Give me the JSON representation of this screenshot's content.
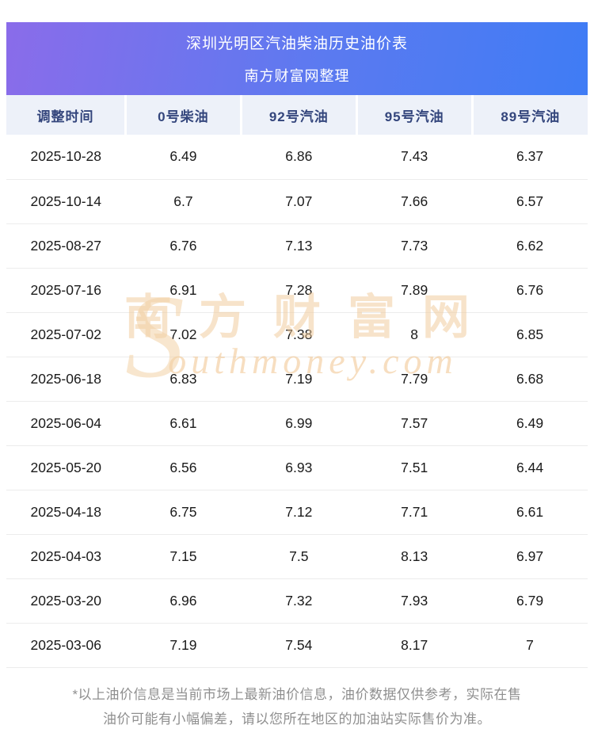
{
  "header": {
    "title_line1": "深圳光明区汽油柴油历史油价表",
    "title_line2": "南方财富网整理"
  },
  "chart_data": {
    "type": "table",
    "title": "深圳光明区汽油柴油历史油价表",
    "subtitle": "南方财富网整理",
    "columns": [
      "调整时间",
      "0号柴油",
      "92号汽油",
      "95号汽油",
      "89号汽油"
    ],
    "rows": [
      [
        "2025-10-28",
        "6.49",
        "6.86",
        "7.43",
        "6.37"
      ],
      [
        "2025-10-14",
        "6.7",
        "7.07",
        "7.66",
        "6.57"
      ],
      [
        "2025-08-27",
        "6.76",
        "7.13",
        "7.73",
        "6.62"
      ],
      [
        "2025-07-16",
        "6.91",
        "7.28",
        "7.89",
        "6.76"
      ],
      [
        "2025-07-02",
        "7.02",
        "7.38",
        "8",
        "6.85"
      ],
      [
        "2025-06-18",
        "6.83",
        "7.19",
        "7.79",
        "6.68"
      ],
      [
        "2025-06-04",
        "6.61",
        "6.99",
        "7.57",
        "6.49"
      ],
      [
        "2025-05-20",
        "6.56",
        "6.93",
        "7.51",
        "6.44"
      ],
      [
        "2025-04-18",
        "6.75",
        "7.12",
        "7.71",
        "6.61"
      ],
      [
        "2025-04-03",
        "7.15",
        "7.5",
        "8.13",
        "6.97"
      ],
      [
        "2025-03-20",
        "6.96",
        "7.32",
        "7.93",
        "6.79"
      ],
      [
        "2025-03-06",
        "7.19",
        "7.54",
        "8.17",
        "7"
      ]
    ]
  },
  "watermark": {
    "brand_text": "南方财富网",
    "initial": "S",
    "domain_rest": "outhmoney.com"
  },
  "footer": {
    "line1": "*以上油价信息是当前市场上最新油价信息，油价数据仅供参考，实际在售",
    "line2": "油价可能有小幅偏差，请以您所在地区的加油站实际售价为准。"
  },
  "colors": {
    "header_gradient_start": "#8a6cea",
    "header_gradient_mid": "#5b7af0",
    "header_gradient_end": "#3f7cf5",
    "column_header_bg": "#edf1f9",
    "column_header_text": "#33457c",
    "body_text": "#1a1a1a",
    "row_border": "#ececec",
    "watermark": "#f0c896",
    "footer_text": "#8f8f8f"
  }
}
